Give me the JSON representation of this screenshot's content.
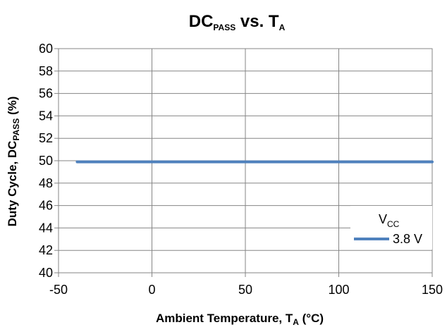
{
  "chart_data": {
    "type": "line",
    "title": {
      "main": "DC",
      "main_sub": "PASS",
      "middle": " vs. T",
      "middle_sub": "A"
    },
    "xlabel": {
      "main": "Ambient Temperature, T",
      "sub": "A",
      "tail": " (°C)"
    },
    "ylabel": {
      "main": "Duty Cycle, DC",
      "sub": "PASS",
      "tail": " (%)"
    },
    "xlim": [
      -50,
      150
    ],
    "ylim": [
      40,
      60
    ],
    "x_ticks": [
      -50,
      0,
      50,
      100,
      150
    ],
    "y_ticks": [
      40,
      42,
      44,
      46,
      48,
      50,
      52,
      54,
      56,
      58,
      60
    ],
    "grid": true,
    "legend": {
      "title_main": "V",
      "title_sub": "CC",
      "placement": "lower-right"
    },
    "series": [
      {
        "name": "3.8 V",
        "color": "#4f81bd",
        "x": [
          -40,
          150
        ],
        "y": [
          49.9,
          49.9
        ]
      }
    ]
  }
}
